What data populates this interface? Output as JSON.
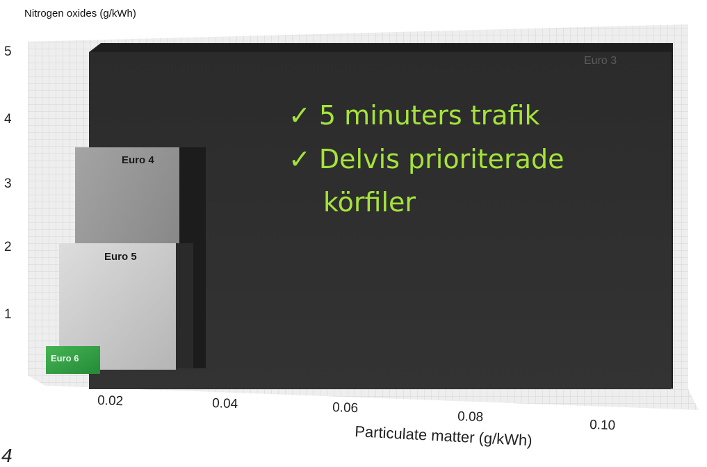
{
  "chart_data": {
    "type": "area",
    "ylabel": "Nitrogen oxides (g/kWh)",
    "xlabel": "Particulate matter (g/kWh)",
    "y_ticks": [
      "5",
      "4",
      "3",
      "2",
      "1"
    ],
    "x_ticks": [
      "0.02",
      "0.04",
      "0.06",
      "0.08",
      "0.10"
    ],
    "ylim": [
      0,
      5
    ],
    "xlim": [
      0,
      0.1
    ],
    "series": [
      {
        "name": "Euro 3",
        "pm": 0.1,
        "nox": 5.0,
        "color": "#2e2e2e"
      },
      {
        "name": "Euro 4",
        "pm": 0.02,
        "nox": 3.5,
        "color": "#9a9a9a"
      },
      {
        "name": "Euro 5",
        "pm": 0.02,
        "nox": 2.0,
        "color": "#cfcfcf"
      },
      {
        "name": "Euro 6",
        "pm": 0.01,
        "nox": 0.4,
        "color": "#2f9a43"
      }
    ]
  },
  "overlay": {
    "bullets": [
      "✓ 5 minuters trafik",
      "✓ Delvis prioriterade",
      "körfiler"
    ],
    "color": "#a5e33a"
  },
  "footer": {
    "page_number": "4"
  }
}
